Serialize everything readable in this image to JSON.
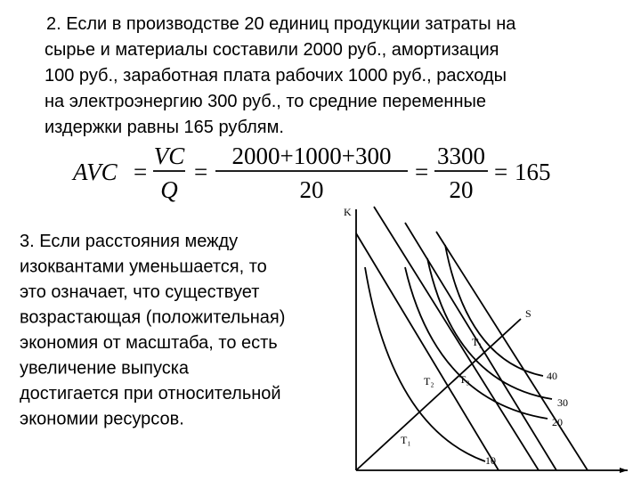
{
  "paragraph_2": {
    "lines": [
      "2. Если в производстве 20 единиц продукции затраты на",
      "сырье и материалы составили 2000 руб., амортизация",
      "100 руб., заработная плата рабочих 1000 руб., расходы",
      "на электроэнергию 300 руб., то средние переменные",
      "издержки равны 165 рублям."
    ]
  },
  "formula": {
    "lhs": "AVC",
    "equals": "=",
    "fraction_1": {
      "numerator": "VC",
      "denominator": "Q"
    },
    "fraction_2": {
      "numerator": "2000+1000+300",
      "denominator": "20"
    },
    "fraction_3": {
      "numerator": "3300",
      "denominator": "20"
    },
    "result": "165"
  },
  "paragraph_3": {
    "lines": [
      "3. Если расстояния между",
      "изоквантами уменьшается, то",
      "это означает, что существует",
      "возрастающая (положительная)",
      "экономия от масштаба, то есть",
      "увеличение выпуска",
      "достигается при относительной",
      "экономии ресурсов."
    ]
  },
  "diagram": {
    "y_axis_label": "K",
    "ray_label": "S",
    "points": [
      "T₁",
      "T₂",
      "T₃",
      "T₁"
    ],
    "isoquants": [
      "40",
      "30",
      "20",
      "10"
    ]
  }
}
